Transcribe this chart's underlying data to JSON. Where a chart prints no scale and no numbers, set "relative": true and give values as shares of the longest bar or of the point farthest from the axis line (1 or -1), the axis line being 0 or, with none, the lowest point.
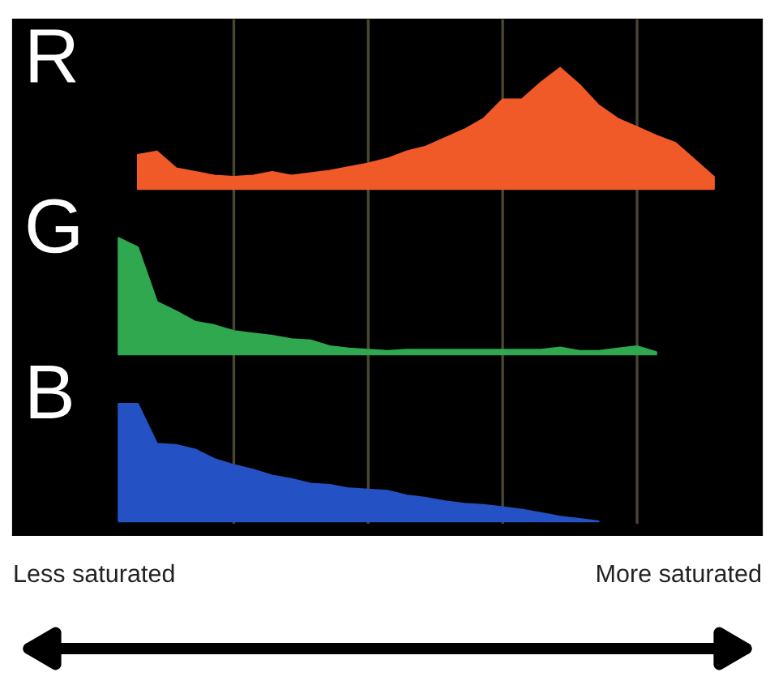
{
  "chart_data": [
    {
      "type": "area",
      "title": "R",
      "relative": true,
      "grid": "x",
      "categories": [
        null,
        null,
        null,
        null,
        null,
        null,
        null,
        null,
        null,
        null,
        null,
        null,
        null,
        null,
        null,
        null,
        null,
        null,
        null,
        null,
        null,
        null,
        null,
        null,
        null,
        null,
        null,
        null,
        null,
        null,
        null,
        null,
        null,
        null,
        null,
        null,
        null,
        null,
        null
      ],
      "series": [
        {
          "color": "#f05a28",
          "values": [
            null,
            null,
            null,
            null,
            null,
            null,
            0.28,
            0.31,
            0.17,
            0.14,
            0.11,
            0.1,
            0.11,
            0.14,
            0.11,
            0.13,
            0.15,
            0.18,
            0.21,
            0.25,
            0.31,
            0.35,
            0.42,
            0.49,
            0.58,
            0.74,
            0.74,
            0.88,
            1.0,
            0.86,
            0.69,
            0.58,
            0.51,
            0.44,
            0.38,
            0.24,
            0.1,
            null,
            null
          ]
        }
      ]
    },
    {
      "type": "area",
      "title": "G",
      "relative": true,
      "grid": "x",
      "categories": [
        null,
        null,
        null,
        null,
        null,
        null,
        null,
        null,
        null,
        null,
        null,
        null,
        null,
        null,
        null,
        null,
        null,
        null,
        null,
        null,
        null,
        null,
        null,
        null,
        null,
        null,
        null,
        null,
        null,
        null,
        null,
        null,
        null,
        null,
        null,
        null,
        null,
        null,
        null
      ],
      "series": [
        {
          "color": "#2fa84f",
          "values": [
            null,
            null,
            null,
            null,
            null,
            1.0,
            0.92,
            0.45,
            0.37,
            0.28,
            0.25,
            0.2,
            0.18,
            0.16,
            0.13,
            0.12,
            0.07,
            0.05,
            0.04,
            0.03,
            0.04,
            0.04,
            0.04,
            0.04,
            0.04,
            0.04,
            0.04,
            0.04,
            0.06,
            0.03,
            0.03,
            0.05,
            0.07,
            0.02,
            null,
            null,
            null,
            null,
            null
          ]
        }
      ]
    },
    {
      "type": "area",
      "title": "B",
      "relative": true,
      "grid": "x",
      "categories": [
        null,
        null,
        null,
        null,
        null,
        null,
        null,
        null,
        null,
        null,
        null,
        null,
        null,
        null,
        null,
        null,
        null,
        null,
        null,
        null,
        null,
        null,
        null,
        null,
        null,
        null,
        null,
        null,
        null,
        null,
        null,
        null,
        null,
        null,
        null,
        null,
        null,
        null,
        null
      ],
      "series": [
        {
          "color": "#2451c4",
          "values": [
            null,
            null,
            null,
            null,
            null,
            1.0,
            1.0,
            0.66,
            0.65,
            0.61,
            0.53,
            0.48,
            0.44,
            0.39,
            0.36,
            0.32,
            0.31,
            0.28,
            0.27,
            0.26,
            0.22,
            0.2,
            0.17,
            0.15,
            0.14,
            0.12,
            0.1,
            0.07,
            0.04,
            0.02,
            0.0,
            null,
            null,
            null,
            null,
            null,
            null,
            null,
            null
          ]
        }
      ],
      "annotations": [
        "Less saturated",
        "More saturated"
      ]
    }
  ]
}
